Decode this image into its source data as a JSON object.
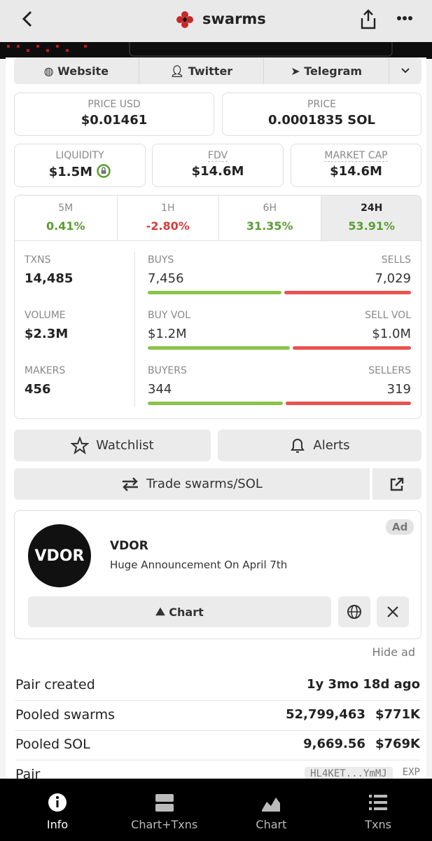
{
  "header": {
    "title": "swarms"
  },
  "links": [
    "Website",
    "Twitter",
    "Telegram"
  ],
  "prices": [
    {
      "label": "PRICE USD",
      "value": "$0.01461"
    },
    {
      "label": "PRICE",
      "value": "0.0001835 SOL"
    }
  ],
  "stats": [
    {
      "label": "LIQUIDITY",
      "value": "$1.5M"
    },
    {
      "label": "FDV",
      "value": "$14.6M"
    },
    {
      "label": "MARKET CAP",
      "value": "$14.6M"
    }
  ],
  "periods": [
    {
      "label": "5M",
      "change": "0.41%"
    },
    {
      "label": "1H",
      "change": "-2.80%"
    },
    {
      "label": "6H",
      "change": "31.35%"
    },
    {
      "label": "24H",
      "change": "53.91%"
    }
  ],
  "activity": [
    {
      "label": "TXNS",
      "value": "14,485",
      "left_label": "BUYS",
      "left": "7,456",
      "right_label": "SELLS",
      "right": "7,029"
    },
    {
      "label": "VOLUME",
      "value": "$2.3M",
      "left_label": "BUY VOL",
      "left": "$1.2M",
      "right_label": "SELL VOL",
      "right": "$1.0M"
    },
    {
      "label": "MAKERS",
      "value": "456",
      "left_label": "BUYERS",
      "left": "344",
      "right_label": "SELLERS",
      "right": "319"
    }
  ],
  "actions": {
    "watchlist": "Watchlist",
    "alerts": "Alerts",
    "trade": "Trade swarms/SOL"
  },
  "ad": {
    "tag": "Ad",
    "name": "VDOR",
    "text": "Huge Announcement On April 7th",
    "button": "Chart",
    "hide": "Hide ad"
  },
  "info": [
    {
      "label": "Pair created",
      "values": [
        "1y 3mo 18d ago"
      ]
    },
    {
      "label": "Pooled swarms",
      "values": [
        "52,799,463",
        "$771K"
      ]
    },
    {
      "label": "Pooled SOL",
      "values": [
        "9,669.56",
        "$769K"
      ]
    },
    {
      "label": "Pair",
      "values": [
        "HL4KET...YmMJ",
        "EXP"
      ]
    }
  ],
  "tabs": [
    "Info",
    "Chart+Txns",
    "Chart",
    "Txns"
  ]
}
